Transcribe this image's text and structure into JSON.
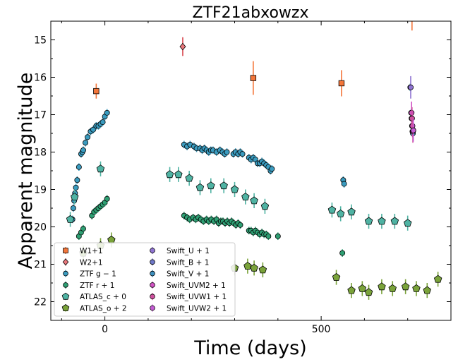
{
  "chart_data": {
    "type": "scatter",
    "title": "ZTF21abxowzx",
    "xlabel": "Time (days)",
    "ylabel": "Apparent magnitude",
    "xlim": [
      -125,
      800
    ],
    "ylim": [
      22.5,
      14.5
    ],
    "y_inverted": true,
    "xticks": [
      0,
      500
    ],
    "yticks": [
      15,
      16,
      17,
      18,
      19,
      20,
      21,
      22
    ],
    "xtick_labels": [
      "0",
      "500"
    ],
    "ytick_labels": [
      "15",
      "16",
      "17",
      "18",
      "19",
      "20",
      "21",
      "22"
    ],
    "grid": false,
    "legend_position": "lower-left",
    "series": [
      {
        "name": "W1+1",
        "marker": "square",
        "color": "#f4763a",
        "errcolor": "#f4763a",
        "points": [
          [
            -20,
            16.37,
            0.2
          ],
          [
            343,
            16.02,
            0.45
          ],
          [
            547,
            16.16,
            0.35
          ],
          [
            710,
            14.4,
            0.35
          ]
        ]
      },
      {
        "name": "W2+1",
        "marker": "diamond",
        "color": "#e8777c",
        "errcolor": "#d9474f",
        "points": [
          [
            180,
            15.18,
            0.25
          ]
        ]
      },
      {
        "name": "ZTF $g-1$",
        "label": "ZTF g − 1",
        "marker": "circle",
        "color": "#3a9bbf",
        "errcolor": "#3a9bbf",
        "points": [
          [
            -75,
            19.8,
            0.1
          ],
          [
            -73,
            19.5,
            0.1
          ],
          [
            -71,
            19.3,
            0.1
          ],
          [
            -69,
            19.1,
            0.1
          ],
          [
            -67,
            18.95,
            0.1
          ],
          [
            -64,
            18.75,
            0.1
          ],
          [
            -60,
            18.4,
            0.1
          ],
          [
            -55,
            18.05,
            0.1
          ],
          [
            -52,
            18.0,
            0.1
          ],
          [
            -50,
            17.95,
            0.1
          ],
          [
            -45,
            17.75,
            0.1
          ],
          [
            -40,
            17.6,
            0.1
          ],
          [
            -33,
            17.45,
            0.1
          ],
          [
            -27,
            17.4,
            0.1
          ],
          [
            -20,
            17.3,
            0.1
          ],
          [
            -15,
            17.3,
            0.1
          ],
          [
            -10,
            17.25,
            0.1
          ],
          [
            -5,
            17.2,
            0.1
          ],
          [
            0,
            17.05,
            0.1
          ],
          [
            5,
            16.95,
            0.1
          ],
          [
            183,
            17.8,
            0.1
          ],
          [
            190,
            17.85,
            0.1
          ],
          [
            197,
            17.8,
            0.1
          ],
          [
            206,
            17.85,
            0.1
          ],
          [
            212,
            17.9,
            0.1
          ],
          [
            220,
            17.9,
            0.1
          ],
          [
            225,
            17.95,
            0.1
          ],
          [
            230,
            17.9,
            0.1
          ],
          [
            235,
            17.95,
            0.1
          ],
          [
            240,
            18.0,
            0.1
          ],
          [
            245,
            17.95,
            0.1
          ],
          [
            250,
            17.95,
            0.1
          ],
          [
            258,
            18.0,
            0.1
          ],
          [
            266,
            17.95,
            0.1
          ],
          [
            272,
            18.0,
            0.1
          ],
          [
            277,
            18.05,
            0.1
          ],
          [
            282,
            18.0,
            0.1
          ],
          [
            297,
            18.05,
            0.1
          ],
          [
            302,
            18.0,
            0.1
          ],
          [
            308,
            18.05,
            0.1
          ],
          [
            313,
            18.0,
            0.1
          ],
          [
            318,
            18.05,
            0.1
          ],
          [
            333,
            18.15,
            0.1
          ],
          [
            338,
            18.2,
            0.1
          ],
          [
            343,
            18.15,
            0.1
          ],
          [
            348,
            18.2,
            0.1
          ],
          [
            353,
            18.3,
            0.1
          ],
          [
            358,
            18.3,
            0.1
          ],
          [
            363,
            18.25,
            0.1
          ],
          [
            368,
            18.3,
            0.1
          ],
          [
            373,
            18.35,
            0.1
          ],
          [
            378,
            18.4,
            0.1
          ],
          [
            383,
            18.5,
            0.1
          ],
          [
            386,
            18.45,
            0.1
          ],
          [
            551,
            18.75,
            0.1
          ],
          [
            553,
            18.85,
            0.1
          ],
          [
            706,
            16.27,
            0.1
          ],
          [
            708,
            16.95,
            0.1
          ],
          [
            709,
            17.1,
            0.1
          ],
          [
            710,
            17.3,
            0.1
          ],
          [
            711,
            17.45,
            0.1
          ],
          [
            712,
            17.5,
            0.1
          ],
          [
            713,
            17.42,
            0.1
          ]
        ]
      },
      {
        "name": "ZTF $r+1$",
        "label": "ZTF r + 1",
        "marker": "circle",
        "color": "#2e9f73",
        "errcolor": "#2e9f73",
        "points": [
          [
            -60,
            20.25,
            0.1
          ],
          [
            -55,
            20.15,
            0.1
          ],
          [
            -50,
            20.05,
            0.1
          ],
          [
            -30,
            19.7,
            0.1
          ],
          [
            -25,
            19.6,
            0.1
          ],
          [
            -20,
            19.55,
            0.1
          ],
          [
            -15,
            19.5,
            0.1
          ],
          [
            -10,
            19.45,
            0.1
          ],
          [
            -5,
            19.4,
            0.1
          ],
          [
            0,
            19.35,
            0.1
          ],
          [
            5,
            19.25,
            0.1
          ],
          [
            183,
            19.7,
            0.1
          ],
          [
            190,
            19.75,
            0.1
          ],
          [
            196,
            19.8,
            0.1
          ],
          [
            204,
            19.75,
            0.1
          ],
          [
            210,
            19.8,
            0.1
          ],
          [
            216,
            19.75,
            0.1
          ],
          [
            222,
            19.8,
            0.1
          ],
          [
            228,
            19.85,
            0.1
          ],
          [
            235,
            19.8,
            0.1
          ],
          [
            240,
            19.85,
            0.1
          ],
          [
            246,
            19.8,
            0.1
          ],
          [
            252,
            19.85,
            0.1
          ],
          [
            258,
            19.8,
            0.1
          ],
          [
            263,
            19.9,
            0.1
          ],
          [
            268,
            19.85,
            0.1
          ],
          [
            273,
            19.85,
            0.1
          ],
          [
            278,
            19.9,
            0.1
          ],
          [
            283,
            19.85,
            0.1
          ],
          [
            288,
            19.9,
            0.1
          ],
          [
            293,
            19.85,
            0.1
          ],
          [
            298,
            19.9,
            0.1
          ],
          [
            303,
            19.95,
            0.1
          ],
          [
            308,
            19.9,
            0.1
          ],
          [
            313,
            19.95,
            0.1
          ],
          [
            333,
            20.1,
            0.1
          ],
          [
            338,
            20.1,
            0.1
          ],
          [
            343,
            20.15,
            0.1
          ],
          [
            348,
            20.1,
            0.1
          ],
          [
            353,
            20.15,
            0.1
          ],
          [
            358,
            20.2,
            0.1
          ],
          [
            363,
            20.15,
            0.1
          ],
          [
            368,
            20.2,
            0.1
          ],
          [
            373,
            20.2,
            0.1
          ],
          [
            378,
            20.25,
            0.1
          ],
          [
            400,
            20.25,
            0.1
          ],
          [
            549,
            20.7,
            0.1
          ]
        ]
      },
      {
        "name": "ATLAS_c + 0",
        "marker": "pentagon",
        "color": "#4fb3a3",
        "errcolor": "#4fb3a3",
        "points": [
          [
            -80,
            19.8,
            0.2
          ],
          [
            -70,
            19.2,
            0.2
          ],
          [
            -10,
            18.45,
            0.2
          ],
          [
            150,
            18.6,
            0.2
          ],
          [
            170,
            18.6,
            0.2
          ],
          [
            195,
            18.7,
            0.2
          ],
          [
            220,
            18.95,
            0.2
          ],
          [
            245,
            18.9,
            0.2
          ],
          [
            275,
            18.9,
            0.2
          ],
          [
            300,
            19.0,
            0.2
          ],
          [
            325,
            19.2,
            0.2
          ],
          [
            345,
            19.3,
            0.2
          ],
          [
            370,
            19.45,
            0.2
          ],
          [
            525,
            19.55,
            0.2
          ],
          [
            545,
            19.65,
            0.2
          ],
          [
            570,
            19.6,
            0.2
          ],
          [
            610,
            19.85,
            0.2
          ],
          [
            640,
            19.85,
            0.2
          ],
          [
            670,
            19.85,
            0.2
          ],
          [
            700,
            19.9,
            0.2
          ]
        ]
      },
      {
        "name": "ATLAS_o + 2",
        "marker": "pentagon",
        "color": "#7aa33a",
        "errcolor": "#7aa33a",
        "points": [
          [
            -50,
            20.7,
            0.2
          ],
          [
            -10,
            20.5,
            0.2
          ],
          [
            15,
            20.35,
            0.2
          ],
          [
            300,
            21.1,
            0.2
          ],
          [
            330,
            21.05,
            0.2
          ],
          [
            345,
            21.1,
            0.2
          ],
          [
            365,
            21.15,
            0.2
          ],
          [
            535,
            21.35,
            0.2
          ],
          [
            570,
            21.7,
            0.2
          ],
          [
            595,
            21.65,
            0.2
          ],
          [
            610,
            21.75,
            0.2
          ],
          [
            640,
            21.6,
            0.2
          ],
          [
            665,
            21.65,
            0.2
          ],
          [
            695,
            21.6,
            0.2
          ],
          [
            720,
            21.65,
            0.2
          ],
          [
            745,
            21.7,
            0.2
          ],
          [
            770,
            21.4,
            0.2
          ]
        ]
      },
      {
        "name": "Swift_U + 1",
        "marker": "circle",
        "color": "#8f73d2",
        "errcolor": "#8f73d2",
        "points": [
          [
            707,
            16.27,
            0.3
          ]
        ]
      },
      {
        "name": "Swift_B + 1",
        "marker": "circle",
        "color": "#6f78c8",
        "errcolor": "#6f78c8",
        "points": []
      },
      {
        "name": "Swift_V + 1",
        "marker": "circle",
        "color": "#3c8fbe",
        "errcolor": "#3c8fbe",
        "points": []
      },
      {
        "name": "Swift_UVM2 + 1",
        "marker": "circle",
        "color": "#d253c4",
        "errcolor": "#d253c4",
        "points": [
          [
            709,
            16.95,
            0.3
          ],
          [
            711,
            17.3,
            0.3
          ]
        ]
      },
      {
        "name": "Swift_UVW1 + 1",
        "marker": "circle",
        "color": "#cf4f9e",
        "errcolor": "#cf4f9e",
        "points": [
          [
            710,
            17.1,
            0.3
          ],
          [
            712,
            17.45,
            0.3
          ]
        ]
      },
      {
        "name": "Swift_UVW2 + 1",
        "marker": "circle",
        "color": "#c55cd4",
        "errcolor": "#c55cd4",
        "points": [
          [
            713,
            17.42,
            0.3
          ]
        ]
      }
    ]
  }
}
